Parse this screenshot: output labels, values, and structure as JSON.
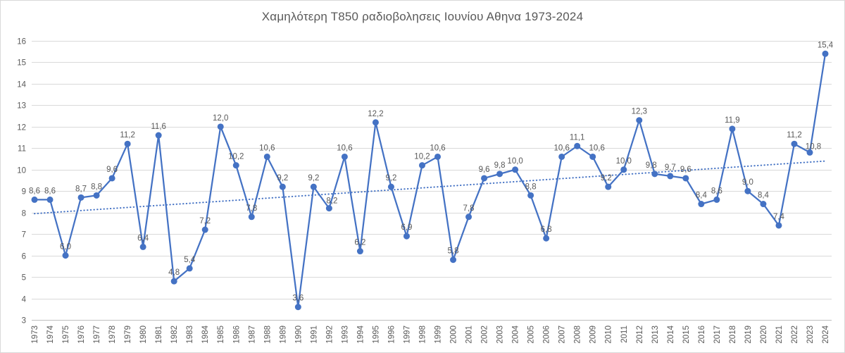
{
  "window": {
    "background": "#ffffff",
    "border_color": "#d9d9d9"
  },
  "chart_data": {
    "type": "line",
    "title": "Χαμηλότερη Τ850 ραδιοβολησεις Ιουνίου Αθηνα 1973-2024",
    "xlabel": "",
    "ylabel": "",
    "categories": [
      "1973",
      "1974",
      "1975",
      "1976",
      "1977",
      "1978",
      "1979",
      "1980",
      "1981",
      "1982",
      "1983",
      "1984",
      "1985",
      "1986",
      "1987",
      "1988",
      "1989",
      "1990",
      "1991",
      "1992",
      "1993",
      "1994",
      "1995",
      "1996",
      "1997",
      "1998",
      "1999",
      "2000",
      "2001",
      "2002",
      "2003",
      "2004",
      "2005",
      "2006",
      "2007",
      "2008",
      "2009",
      "2010",
      "2011",
      "2012",
      "2013",
      "2014",
      "2015",
      "2016",
      "2017",
      "2018",
      "2019",
      "2020",
      "2021",
      "2022",
      "2023",
      "2024"
    ],
    "values": [
      8.6,
      8.6,
      6.0,
      8.7,
      8.8,
      9.6,
      11.2,
      6.4,
      11.6,
      4.8,
      5.4,
      7.2,
      12.0,
      10.2,
      7.8,
      10.6,
      9.2,
      3.6,
      9.2,
      8.2,
      10.6,
      6.2,
      12.2,
      9.2,
      6.9,
      10.2,
      10.6,
      5.8,
      7.8,
      9.6,
      9.8,
      10.0,
      8.8,
      6.8,
      10.6,
      11.1,
      10.6,
      9.2,
      10.0,
      12.3,
      9.8,
      9.7,
      9.6,
      8.4,
      8.6,
      11.9,
      9.0,
      8.4,
      7.4,
      11.2,
      10.8,
      15.4
    ],
    "data_labels_shown": true,
    "decimal_separator": ",",
    "ylim": [
      3,
      16
    ],
    "ytick_step": 1,
    "grid": "horizontal",
    "legend": "none",
    "trendline": {
      "style": "dotted",
      "start_value": 7.95,
      "end_value": 10.4
    },
    "colors": {
      "series": "#4472c4",
      "trendline": "#4472c4",
      "gridline": "#d9d9d9",
      "axis_line": "#bfbfbf",
      "tick_label": "#595959",
      "data_label": "#595959",
      "title": "#595959"
    },
    "label_offsets": {
      "2009": {
        "dx": 6
      },
      "2013": {
        "dx": -5
      },
      "2023": {
        "dx": 5,
        "dy": 4
      },
      "1992": {
        "dx": 4,
        "dy": 2
      },
      "2010": {
        "dx": -3
      }
    }
  }
}
